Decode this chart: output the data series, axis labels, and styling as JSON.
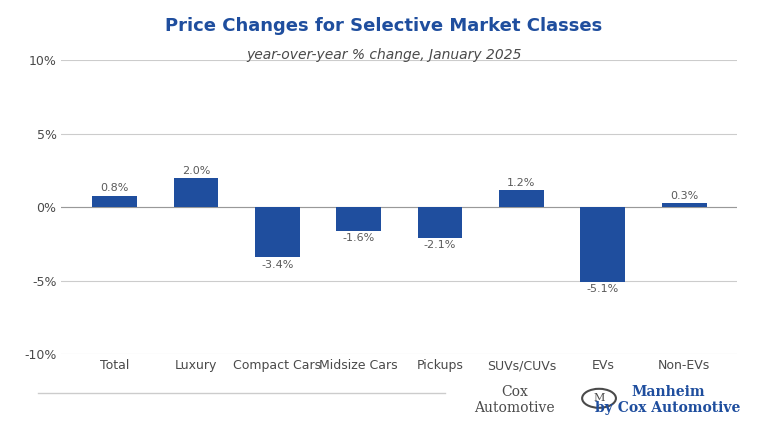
{
  "title": "Price Changes for Selective Market Classes",
  "subtitle": "year-over-year % change, January 2025",
  "categories": [
    "Total",
    "Luxury",
    "Compact Cars",
    "Midsize Cars",
    "Pickups",
    "SUVs/CUVs",
    "EVs",
    "Non-EVs"
  ],
  "values": [
    0.8,
    2.0,
    -3.4,
    -1.6,
    -2.1,
    1.2,
    -5.1,
    0.3
  ],
  "labels": [
    "0.8%",
    "2.0%",
    "-3.4%",
    "-1.6%",
    "-2.1%",
    "1.2%",
    "-5.1%",
    "0.3%"
  ],
  "bar_color": "#1f4e9e",
  "background_color": "#ffffff",
  "title_color": "#1f4e9e",
  "subtitle_color": "#4a4a4a",
  "label_color": "#5a5a5a",
  "axis_label_color": "#4a4a4a",
  "ylim": [
    -10,
    10
  ],
  "yticks": [
    -10,
    -5,
    0,
    5,
    10
  ],
  "ytick_labels": [
    "-10%",
    "-5%",
    "0%",
    "5%",
    "10%"
  ],
  "grid_color": "#cccccc",
  "title_fontsize": 13,
  "subtitle_fontsize": 10,
  "bar_width": 0.55
}
